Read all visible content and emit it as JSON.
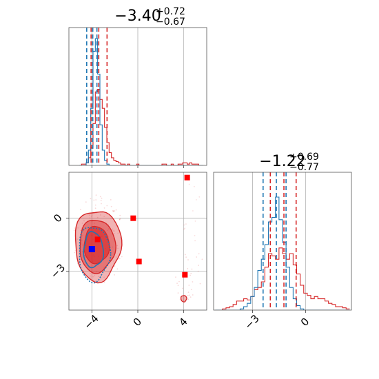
{
  "colors": {
    "series_a": "#d62728",
    "series_b": "#1f77b4",
    "marker_red": "#ff0000",
    "marker_blue": "#0000ff"
  },
  "chart_data": {
    "type": "corner",
    "parameters": 2,
    "grid": true,
    "panels": [
      {
        "kind": "histogram",
        "param": 0,
        "title_main": "−3.40",
        "title_sup": "+0.72",
        "title_sub": "−0.67",
        "xlim": [
          -6,
          6
        ],
        "ylim": [
          0,
          1
        ],
        "quantiles": {
          "series_a": [
            -4.07,
            -3.4,
            -2.68
          ],
          "series_b": [
            -4.45,
            -3.92,
            -3.56
          ]
        },
        "hist": {
          "x": [
            -5.0,
            -4.8,
            -4.6,
            -4.4,
            -4.2,
            -4.0,
            -3.8,
            -3.6,
            -3.4,
            -3.2,
            -3.0,
            -2.8,
            -2.6,
            -2.4,
            -2.2,
            -2.0,
            -1.8,
            -1.6,
            -1.4,
            -1.2,
            -1.0,
            -0.8,
            -0.6,
            -0.4,
            -0.2,
            0.0,
            0.2,
            0.4,
            0.6,
            0.8,
            1.0,
            1.2,
            1.4,
            1.6,
            1.8,
            2.0,
            2.2,
            2.4,
            2.6,
            2.8,
            3.0,
            3.2,
            3.4,
            3.6,
            3.8,
            4.0,
            4.2,
            4.4,
            4.6,
            4.8,
            5.0,
            5.2,
            5.4,
            5.6
          ],
          "series_a": [
            0,
            0.01,
            0.01,
            0.02,
            0.06,
            0.14,
            0.33,
            0.58,
            0.6,
            0.52,
            0.45,
            0.3,
            0.18,
            0.1,
            0.06,
            0.04,
            0.03,
            0.02,
            0.01,
            0.01,
            0,
            0.01,
            0,
            0,
            0,
            0.01,
            0,
            0,
            0,
            0,
            0,
            0,
            0,
            0,
            0,
            0,
            0.01,
            0.01,
            0,
            0,
            0.01,
            0,
            0,
            0.01,
            0.01,
            0.02,
            0.02,
            0.01,
            0.02,
            0.01,
            0.01,
            0.01,
            0,
            0
          ],
          "series_b": [
            0,
            0,
            0,
            0.02,
            0.12,
            0.45,
            0.9,
            1.0,
            0.72,
            0.32,
            0.12,
            0.04,
            0.01,
            0,
            0,
            0,
            0,
            0,
            0,
            0,
            0,
            0,
            0,
            0,
            0,
            0,
            0,
            0,
            0,
            0,
            0,
            0,
            0,
            0,
            0,
            0,
            0,
            0,
            0,
            0,
            0,
            0,
            0,
            0,
            0,
            0,
            0,
            0,
            0,
            0,
            0,
            0,
            0,
            0
          ]
        }
      },
      {
        "kind": "scatter2d",
        "xparam": 0,
        "yparam": 1,
        "xlim": [
          -6,
          6
        ],
        "ylim": [
          -5.2,
          2.6
        ],
        "xticks": [
          -4,
          0,
          4
        ],
        "xtick_labels": [
          "−4",
          "0",
          "4"
        ],
        "yticks": [
          0,
          -3
        ],
        "ytick_labels": [
          "0",
          "−3"
        ],
        "series_a_center": [
          -3.4,
          -1.22
        ],
        "series_b_center": [
          -3.92,
          -1.6
        ],
        "markers_red": [
          {
            "x": 4.3,
            "y": 2.3
          },
          {
            "x": -0.4,
            "y": 0
          },
          {
            "x": 0.1,
            "y": -2.45
          },
          {
            "x": 4.1,
            "y": -3.2
          },
          {
            "x": -3.5,
            "y": -1.2
          }
        ],
        "markers_blue": [
          {
            "x": -4.0,
            "y": -1.75
          }
        ]
      },
      {
        "kind": "histogram",
        "param": 1,
        "title_main": "−1.22",
        "title_sup": "+0.69",
        "title_sub": "−0.77",
        "xlim": [
          -5.2,
          2.6
        ],
        "ylim": [
          0,
          1
        ],
        "xticks": [
          -3,
          0
        ],
        "xtick_labels": [
          "−3",
          "0"
        ],
        "quantiles": {
          "series_a": [
            -1.99,
            -1.22,
            -0.53
          ],
          "series_b": [
            -2.4,
            -1.65,
            -1.1
          ]
        },
        "hist": {
          "x": [
            -5.0,
            -4.8,
            -4.6,
            -4.4,
            -4.2,
            -4.0,
            -3.8,
            -3.6,
            -3.4,
            -3.2,
            -3.0,
            -2.8,
            -2.6,
            -2.4,
            -2.2,
            -2.0,
            -1.8,
            -1.6,
            -1.4,
            -1.2,
            -1.0,
            -0.8,
            -0.6,
            -0.4,
            -0.2,
            0.0,
            0.2,
            0.4,
            0.6,
            0.8,
            1.0,
            1.2,
            1.4,
            1.6,
            1.8,
            2.0,
            2.2,
            2.4
          ],
          "series_a": [
            0,
            0,
            0.01,
            0.02,
            0.03,
            0.05,
            0.08,
            0.08,
            0.1,
            0.09,
            0.12,
            0.18,
            0.2,
            0.25,
            0.38,
            0.5,
            0.48,
            0.45,
            0.55,
            0.5,
            0.45,
            0.5,
            0.4,
            0.32,
            0.22,
            0.15,
            0.13,
            0.1,
            0.12,
            0.1,
            0.1,
            0.08,
            0.06,
            0.05,
            0.03,
            0.03,
            0.02,
            0.01
          ],
          "series_b": [
            0,
            0,
            0,
            0,
            0,
            0,
            0,
            0.01,
            0.03,
            0.06,
            0.12,
            0.2,
            0.35,
            0.45,
            0.58,
            0.78,
            0.82,
            1.0,
            0.8,
            0.6,
            0.38,
            0.2,
            0.1,
            0.04,
            0.01,
            0,
            0,
            0,
            0,
            0,
            0,
            0,
            0,
            0,
            0,
            0,
            0,
            0
          ]
        }
      }
    ]
  }
}
